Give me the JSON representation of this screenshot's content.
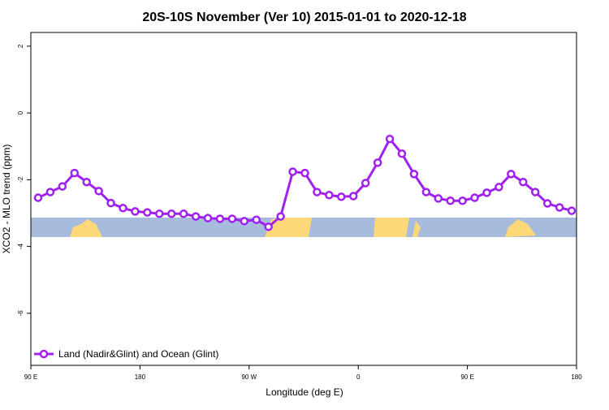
{
  "chart_data": {
    "type": "line",
    "title": "20S-10S November (Ver 10)   2015-01-01 to 2020-12-18",
    "x_label": "Longitude (deg E)",
    "y_label": "XCO2 - MLO trend (ppm)",
    "x": [
      96,
      106,
      116,
      126,
      136,
      146,
      156,
      166,
      176,
      186,
      196,
      206,
      216,
      226,
      236,
      246,
      256,
      266,
      276,
      286,
      296,
      306,
      316,
      326,
      336,
      346,
      356,
      366,
      376,
      386,
      396,
      406,
      416,
      426,
      436,
      446,
      456,
      466,
      476,
      486,
      496,
      506,
      516,
      526,
      536
    ],
    "series": [
      {
        "name": "Land (Nadir&Glint) and Ocean (Glint)",
        "color": "#a020f0",
        "values": [
          -2.54,
          -2.37,
          -2.2,
          -1.8,
          -2.07,
          -2.34,
          -2.7,
          -2.85,
          -2.95,
          -2.98,
          -3.02,
          -3.02,
          -3.02,
          -3.1,
          -3.15,
          -3.17,
          -3.17,
          -3.24,
          -3.2,
          -3.41,
          -3.1,
          -1.76,
          -1.8,
          -2.37,
          -2.46,
          -2.51,
          -2.49,
          -2.1,
          -1.49,
          -0.78,
          -1.22,
          -1.83,
          -2.37,
          -2.56,
          -2.63,
          -2.63,
          -2.54,
          -2.39,
          -2.22,
          -1.83,
          -2.07,
          -2.37,
          -2.71,
          -2.83,
          -2.93
        ]
      }
    ],
    "xlim": [
      90,
      540
    ],
    "ylim": [
      -7.56,
      2.41
    ],
    "xticks": [
      {
        "value": 90,
        "label": "90 E"
      },
      180,
      {
        "value": 270,
        "label": "90 W"
      },
      {
        "value": 360,
        "label": "0"
      },
      {
        "value": 450,
        "label": "90 E"
      },
      {
        "value": 540,
        "label": "180"
      }
    ],
    "yticks": [
      -6,
      -4,
      -2,
      0,
      2
    ],
    "legend": "bottom-left"
  }
}
